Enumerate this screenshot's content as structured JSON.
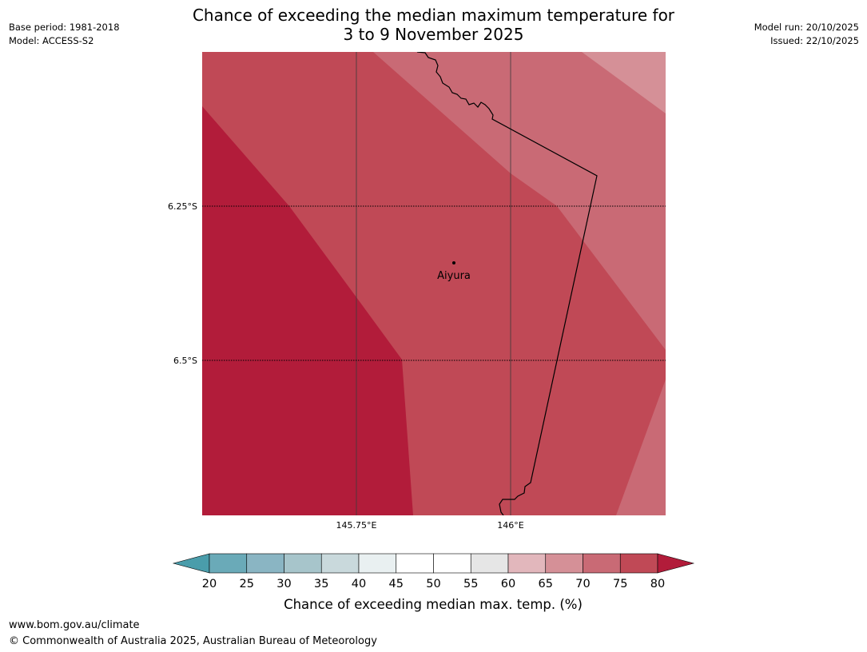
{
  "title_line1": "Chance of exceeding the median maximum temperature for",
  "title_line2": "3 to 9 November 2025",
  "meta_left": {
    "base_period": "Base period: 1981-2018",
    "model": "Model: ACCESS-S2"
  },
  "meta_right": {
    "model_run": "Model run: 20/10/2025",
    "issued": "Issued: 22/10/2025"
  },
  "map": {
    "location": {
      "name": "Aiyura",
      "lat": -6.35,
      "lon": 145.9
    },
    "lat_labels": [
      "6.25°S",
      "6.5°S"
    ],
    "lon_labels": [
      "145.75°E",
      "146°E"
    ],
    "band_colors": {
      "75-80": "#c04956",
      "80+": "#b21c3a",
      "70-75": "#c96a75",
      "65-70": "#d59097"
    }
  },
  "colorbar": {
    "title": "Chance of exceeding median max. temp. (%)",
    "ticks": [
      "20",
      "25",
      "30",
      "35",
      "40",
      "45",
      "50",
      "55",
      "60",
      "65",
      "70",
      "75",
      "80"
    ],
    "colors": [
      "#4a9dab",
      "#6aaab8",
      "#8ab5c3",
      "#a7c5cb",
      "#c9d9dc",
      "#e9f0f1",
      "#ffffff",
      "#ffffff",
      "#e6e6e6",
      "#e2b7bc",
      "#d59097",
      "#c96a75",
      "#c04956",
      "#b21c3a"
    ]
  },
  "footer": {
    "url": "www.bom.gov.au/climate",
    "copyright": "© Commonwealth of Australia 2025, Australian Bureau of Meteorology"
  }
}
